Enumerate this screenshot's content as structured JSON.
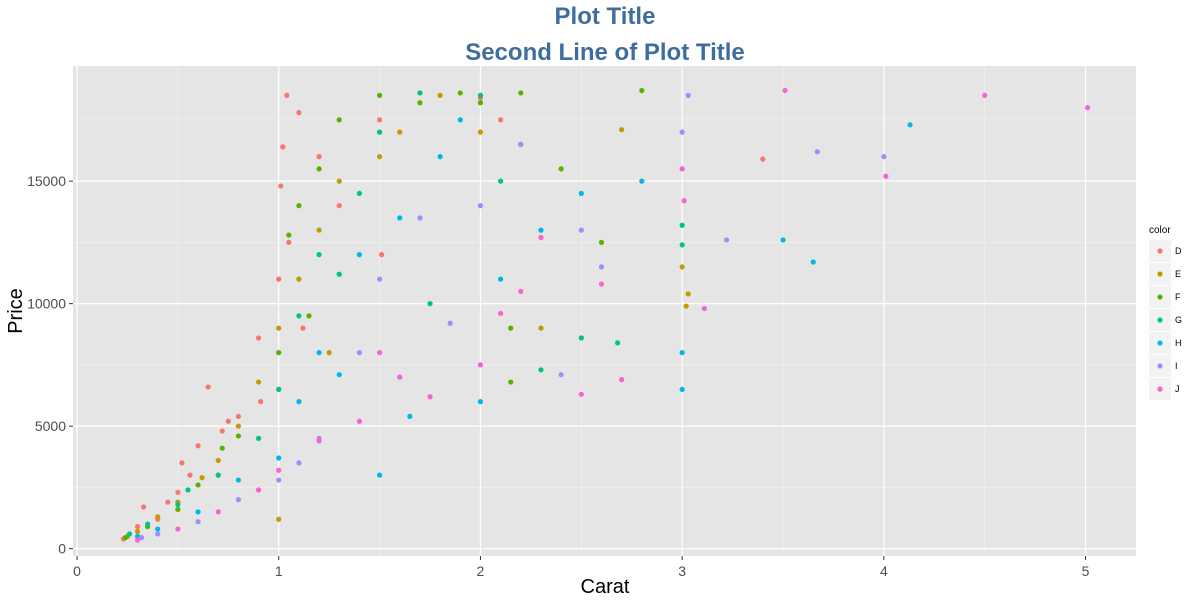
{
  "chart_data": {
    "type": "scatter",
    "title": "Plot Title",
    "subtitle": "Second Line of Plot Title",
    "xlabel": "Carat",
    "ylabel": "Price",
    "xlim": [
      -0.02,
      5.25
    ],
    "ylim": [
      -300,
      19700
    ],
    "x_ticks": [
      0,
      1,
      2,
      3,
      4,
      5
    ],
    "y_ticks": [
      0,
      5000,
      10000,
      15000
    ],
    "x_tick_labels": [
      "0",
      "1",
      "2",
      "3",
      "4",
      "5"
    ],
    "y_tick_labels": [
      "0",
      "5000",
      "10000",
      "15000"
    ],
    "grid": true,
    "legend": {
      "title": "color",
      "position": "right",
      "entries": [
        "D",
        "E",
        "F",
        "G",
        "H",
        "I",
        "J"
      ]
    },
    "series": [
      {
        "name": "D",
        "color": "#F8766D",
        "points": [
          [
            0.23,
            400
          ],
          [
            0.3,
            900
          ],
          [
            0.33,
            1700
          ],
          [
            0.4,
            1200
          ],
          [
            0.5,
            2300
          ],
          [
            0.52,
            3500
          ],
          [
            0.6,
            4200
          ],
          [
            0.65,
            6600
          ],
          [
            0.7,
            3000
          ],
          [
            0.72,
            4800
          ],
          [
            0.8,
            5400
          ],
          [
            0.9,
            8600
          ],
          [
            0.91,
            6000
          ],
          [
            1.0,
            11000
          ],
          [
            1.01,
            14800
          ],
          [
            1.02,
            16400
          ],
          [
            1.04,
            18500
          ],
          [
            1.05,
            12500
          ],
          [
            1.1,
            17800
          ],
          [
            1.12,
            9000
          ],
          [
            1.2,
            16000
          ],
          [
            1.3,
            14000
          ],
          [
            1.5,
            17500
          ],
          [
            1.51,
            12000
          ],
          [
            1.7,
            18600
          ],
          [
            2.0,
            18400
          ],
          [
            2.1,
            17500
          ],
          [
            3.4,
            15900
          ],
          [
            0.45,
            1900
          ],
          [
            0.75,
            5200
          ],
          [
            1.0,
            6500
          ],
          [
            0.56,
            3000
          ]
        ]
      },
      {
        "name": "E",
        "color": "#C49A00",
        "points": [
          [
            0.25,
            500
          ],
          [
            0.3,
            700
          ],
          [
            0.4,
            1300
          ],
          [
            0.5,
            1900
          ],
          [
            0.7,
            3600
          ],
          [
            0.8,
            5000
          ],
          [
            1.0,
            9000
          ],
          [
            1.0,
            1200
          ],
          [
            1.1,
            11000
          ],
          [
            1.2,
            13000
          ],
          [
            1.3,
            15000
          ],
          [
            1.5,
            16000
          ],
          [
            1.6,
            17000
          ],
          [
            1.8,
            18500
          ],
          [
            2.0,
            17000
          ],
          [
            2.2,
            16500
          ],
          [
            2.3,
            9000
          ],
          [
            2.7,
            17100
          ],
          [
            3.0,
            11500
          ],
          [
            3.03,
            10400
          ],
          [
            3.02,
            9900
          ],
          [
            0.9,
            6800
          ],
          [
            1.25,
            8000
          ],
          [
            0.62,
            2900
          ]
        ]
      },
      {
        "name": "F",
        "color": "#53B400",
        "points": [
          [
            0.24,
            450
          ],
          [
            0.35,
            900
          ],
          [
            0.5,
            1600
          ],
          [
            0.6,
            2600
          ],
          [
            0.8,
            4600
          ],
          [
            1.0,
            8000
          ],
          [
            1.05,
            12800
          ],
          [
            1.1,
            14000
          ],
          [
            1.2,
            15500
          ],
          [
            1.3,
            17500
          ],
          [
            1.5,
            18500
          ],
          [
            1.7,
            18200
          ],
          [
            1.9,
            18600
          ],
          [
            2.0,
            18200
          ],
          [
            2.2,
            18600
          ],
          [
            2.4,
            15500
          ],
          [
            2.6,
            12500
          ],
          [
            2.8,
            18700
          ],
          [
            2.15,
            6800
          ],
          [
            2.5,
            8600
          ],
          [
            2.15,
            9000
          ],
          [
            0.72,
            4100
          ],
          [
            1.15,
            9500
          ]
        ]
      },
      {
        "name": "G",
        "color": "#00C094",
        "points": [
          [
            0.26,
            600
          ],
          [
            0.35,
            1000
          ],
          [
            0.5,
            1800
          ],
          [
            0.7,
            3000
          ],
          [
            0.9,
            4500
          ],
          [
            1.0,
            6500
          ],
          [
            1.1,
            9500
          ],
          [
            1.2,
            12000
          ],
          [
            1.4,
            14500
          ],
          [
            1.5,
            17000
          ],
          [
            1.7,
            18600
          ],
          [
            1.75,
            10000
          ],
          [
            2.0,
            18500
          ],
          [
            2.1,
            15000
          ],
          [
            2.3,
            7300
          ],
          [
            2.5,
            8600
          ],
          [
            2.68,
            8400
          ],
          [
            3.0,
            13200
          ],
          [
            3.0,
            12400
          ],
          [
            0.55,
            2400
          ],
          [
            1.3,
            11200
          ]
        ]
      },
      {
        "name": "H",
        "color": "#00B6EB",
        "points": [
          [
            0.3,
            500
          ],
          [
            0.4,
            800
          ],
          [
            0.6,
            1500
          ],
          [
            0.8,
            2800
          ],
          [
            1.0,
            3700
          ],
          [
            1.1,
            6000
          ],
          [
            1.2,
            8000
          ],
          [
            1.4,
            12000
          ],
          [
            1.5,
            3000
          ],
          [
            1.6,
            13500
          ],
          [
            1.8,
            16000
          ],
          [
            1.9,
            17500
          ],
          [
            2.0,
            6000
          ],
          [
            2.1,
            11000
          ],
          [
            2.3,
            13000
          ],
          [
            2.5,
            14500
          ],
          [
            2.8,
            15000
          ],
          [
            3.0,
            6500
          ],
          [
            3.0,
            8000
          ],
          [
            3.5,
            12600
          ],
          [
            3.65,
            11700
          ],
          [
            4.13,
            17300
          ],
          [
            1.65,
            5400
          ],
          [
            1.3,
            7100
          ]
        ]
      },
      {
        "name": "I",
        "color": "#A58AFF",
        "points": [
          [
            0.32,
            450
          ],
          [
            0.4,
            600
          ],
          [
            0.6,
            1100
          ],
          [
            0.8,
            2000
          ],
          [
            1.0,
            2800
          ],
          [
            1.2,
            4500
          ],
          [
            1.4,
            8000
          ],
          [
            1.5,
            11000
          ],
          [
            1.7,
            13500
          ],
          [
            2.0,
            14000
          ],
          [
            2.2,
            16500
          ],
          [
            2.5,
            13000
          ],
          [
            2.6,
            11500
          ],
          [
            3.0,
            17000
          ],
          [
            3.03,
            18500
          ],
          [
            3.22,
            12600
          ],
          [
            3.67,
            16200
          ],
          [
            4.0,
            16000
          ],
          [
            1.85,
            9200
          ],
          [
            2.4,
            7100
          ],
          [
            1.1,
            3500
          ]
        ]
      },
      {
        "name": "J",
        "color": "#FB61D7",
        "points": [
          [
            0.3,
            350
          ],
          [
            0.5,
            800
          ],
          [
            0.7,
            1500
          ],
          [
            0.9,
            2400
          ],
          [
            1.0,
            3200
          ],
          [
            1.2,
            4400
          ],
          [
            1.4,
            5200
          ],
          [
            1.5,
            8000
          ],
          [
            1.6,
            7000
          ],
          [
            2.0,
            7500
          ],
          [
            2.1,
            9600
          ],
          [
            2.3,
            12700
          ],
          [
            2.5,
            6300
          ],
          [
            2.6,
            10800
          ],
          [
            2.7,
            6900
          ],
          [
            3.0,
            15500
          ],
          [
            3.01,
            14200
          ],
          [
            3.11,
            9800
          ],
          [
            3.51,
            18700
          ],
          [
            4.01,
            15200
          ],
          [
            4.5,
            18500
          ],
          [
            5.01,
            18000
          ],
          [
            1.75,
            6200
          ],
          [
            2.2,
            10500
          ]
        ]
      }
    ]
  }
}
